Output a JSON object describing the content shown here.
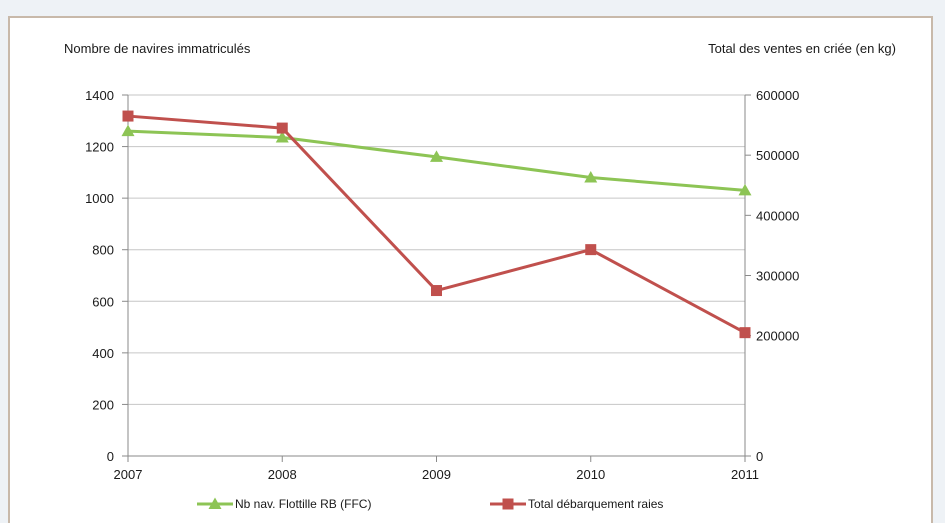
{
  "chart_data": {
    "type": "line",
    "left_axis_title": "Nombre de navires immatriculés",
    "right_axis_title": "Total des ventes en criée (en kg)",
    "x": [
      "2007",
      "2008",
      "2009",
      "2010",
      "2011"
    ],
    "y_left": {
      "range": [
        0,
        1400
      ],
      "ticks": [
        0,
        200,
        400,
        600,
        800,
        1000,
        1200,
        1400
      ]
    },
    "y_right": {
      "range": [
        0,
        600000
      ],
      "ticks": [
        0,
        200000,
        300000,
        400000,
        500000,
        600000
      ]
    },
    "grid": true,
    "legend_position": "bottom",
    "series": [
      {
        "name": "Nb nav. Flottille RB (FFC)",
        "axis": "left",
        "marker": "triangle",
        "color": "#8dc455",
        "values": [
          1260,
          1235,
          1160,
          1080,
          1030
        ]
      },
      {
        "name": "Total débarquement raies",
        "axis": "right",
        "marker": "square",
        "color": "#c0504d",
        "values": [
          565000,
          545000,
          275000,
          343000,
          205000
        ]
      }
    ]
  }
}
